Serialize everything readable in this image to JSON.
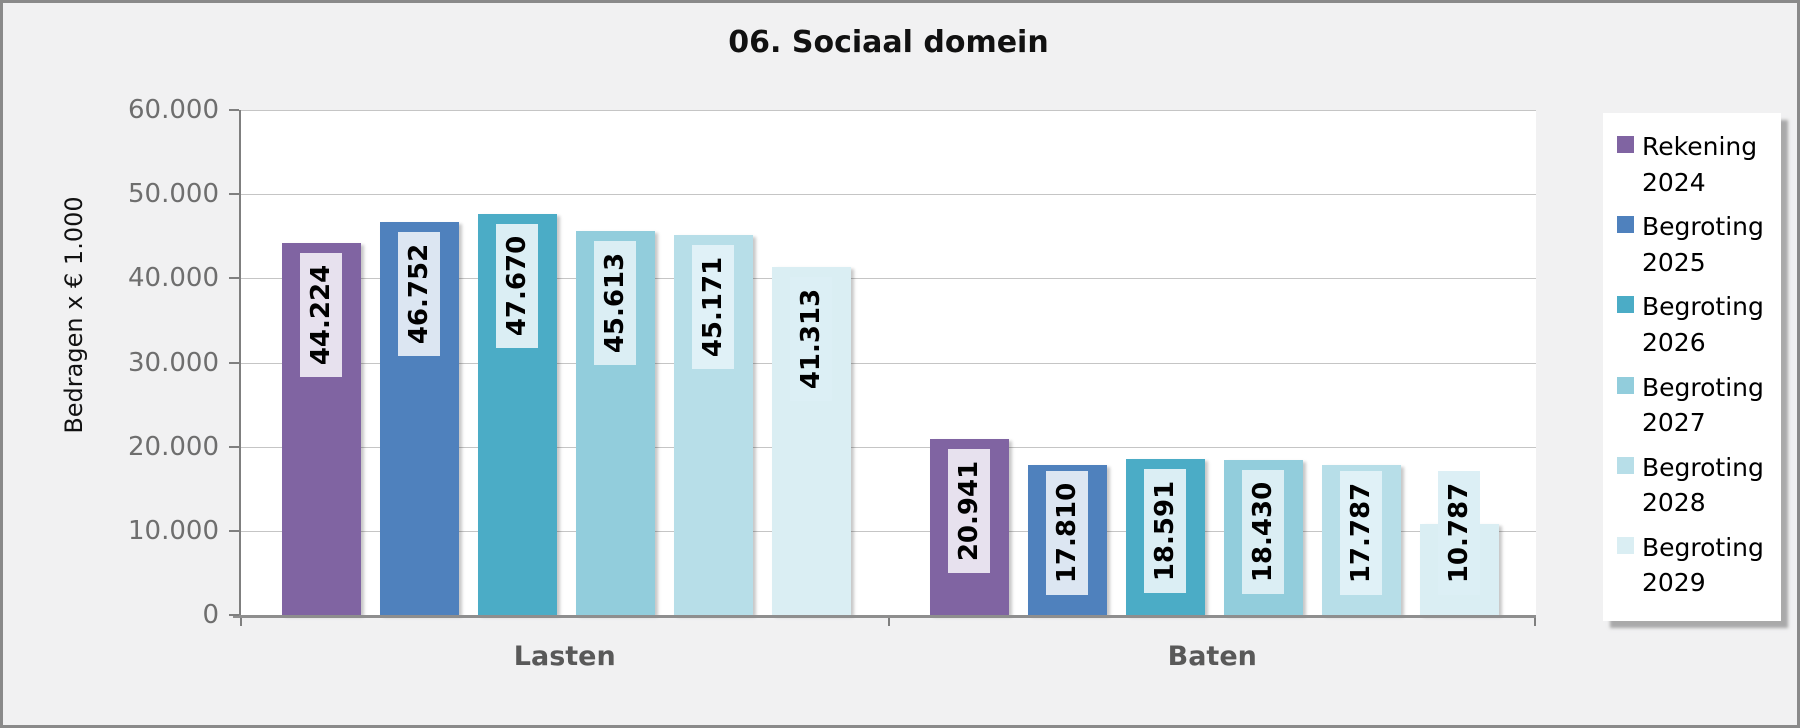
{
  "chart_data": {
    "type": "bar",
    "title": "06. Sociaal domein",
    "ylabel": "Bedragen x € 1.000",
    "xlabel": "",
    "categories": [
      "Lasten",
      "Baten"
    ],
    "series": [
      {
        "name": "Rekening 2024",
        "color": "#8064A2",
        "label_bg": "#E7E1EE",
        "values": [
          44224,
          20941
        ],
        "labels": [
          "44.224",
          "20.941"
        ]
      },
      {
        "name": "Begroting 2025",
        "color": "#4F81BD",
        "label_bg": "#DCE6F2",
        "values": [
          46752,
          17810
        ],
        "labels": [
          "46.752",
          "17.810"
        ]
      },
      {
        "name": "Begroting 2026",
        "color": "#4BACC6",
        "label_bg": "#DBEEF4",
        "values": [
          47670,
          18591
        ],
        "labels": [
          "47.670",
          "18.591"
        ]
      },
      {
        "name": "Begroting 2027",
        "color": "#92CDDC",
        "label_bg": "#DBEEF4",
        "values": [
          45613,
          18430
        ],
        "labels": [
          "45.613",
          "18.430"
        ]
      },
      {
        "name": "Begroting 2028",
        "color": "#B7DEE8",
        "label_bg": "#E0F1F7",
        "values": [
          45171,
          17787
        ],
        "labels": [
          "45.171",
          "17.787"
        ]
      },
      {
        "name": "Begroting 2029",
        "color": "#DAEEF3",
        "label_bg": "#DCEFF5",
        "values": [
          41313,
          10787
        ],
        "labels": [
          "41.313",
          "10.787"
        ]
      }
    ],
    "ylim": [
      0,
      60000
    ],
    "ytick_step": 10000,
    "ytick_labels": [
      "0",
      "10.000",
      "20.000",
      "30.000",
      "40.000",
      "50.000",
      "60.000"
    ],
    "grid": true,
    "legend_position": "right",
    "colors": {
      "background": "#F1F1F2",
      "plot_background": "#FFFFFF",
      "gridline": "#C5C5C5",
      "axis_line": "#7F7F7F",
      "tick_label": "#6E6E6E",
      "category_label": "#595959"
    }
  }
}
